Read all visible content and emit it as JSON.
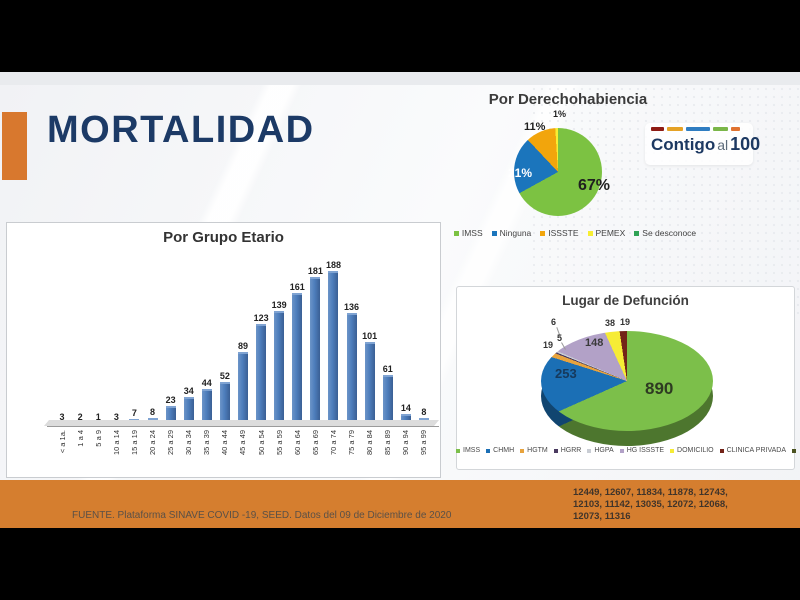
{
  "slide": {
    "title": "MORTALIDAD",
    "source_note": "FUENTE. Plataforma SINAVE COVID -19, SEED. Datos del 09 de Diciembre de 2020",
    "footer_numbers": [
      "12449, 12607, 11834, 11878, 12743,",
      "12103, 11142, 13035, 12072, 12068,",
      "12073, 11316"
    ],
    "logo": {
      "word_bold_1": "Contigo",
      "word_light": "al",
      "word_bold_2": "100",
      "dash_colors": [
        "#8E1B14",
        "#E5A226",
        "#2F7DC1",
        "#7AB648",
        "#E0722F"
      ]
    }
  },
  "chart_data": [
    {
      "type": "pie",
      "title": "Por Derechohabiencia",
      "labels": [
        "IMSS",
        "Ninguna",
        "ISSSTE",
        "PEMEX",
        "Se desconoce"
      ],
      "values": [
        67,
        21,
        11,
        1,
        0
      ],
      "unit": "percent",
      "colors": [
        "#7CC242",
        "#1B75BC",
        "#F2A50C",
        "#F7EE33",
        "#2FA355"
      ],
      "slice_labels": [
        "67%",
        "21%",
        "11%",
        "1%"
      ],
      "legend_position": "bottom"
    },
    {
      "type": "bar",
      "title": "Por Grupo Etario",
      "categories": [
        "< a 1a.",
        "1 a 4",
        "5 a 9",
        "10 a 14",
        "15 a 19",
        "20 a 24",
        "25 a 29",
        "30 a 34",
        "35 a 39",
        "40 a 44",
        "45 a 49",
        "50 a 54",
        "55 a 59",
        "60 a 64",
        "65 a 69",
        "70 a 74",
        "75 a 79",
        "80 a 84",
        "85 a 89",
        "90 a 94",
        "95 a 99"
      ],
      "values": [
        3,
        2,
        1,
        3,
        7,
        8,
        23,
        34,
        44,
        52,
        89,
        123,
        139,
        161,
        181,
        188,
        136,
        101,
        61,
        14,
        8
      ],
      "bar_color": "#4E7EBC",
      "value_labels_shown": true,
      "xlabel": "",
      "ylabel": ""
    },
    {
      "type": "pie3d",
      "title": "Lugar de Defunción",
      "labels": [
        "IMSS",
        "CHMH",
        "HGTM",
        "HGRR",
        "HGPA",
        "HG ISSSTE",
        "DOMICILIO",
        "CLINICA PRIVADA"
      ],
      "values": [
        890,
        253,
        19,
        5,
        6,
        148,
        38,
        19
      ],
      "colors": [
        "#7CBF4A",
        "#1B6FB5",
        "#E8A33D",
        "#4A3A60",
        "#C9CDD4",
        "#B2A1C7",
        "#F6EC35",
        "#732318"
      ],
      "trailing_marker_color": "#4b5320",
      "legend_position": "bottom"
    }
  ]
}
